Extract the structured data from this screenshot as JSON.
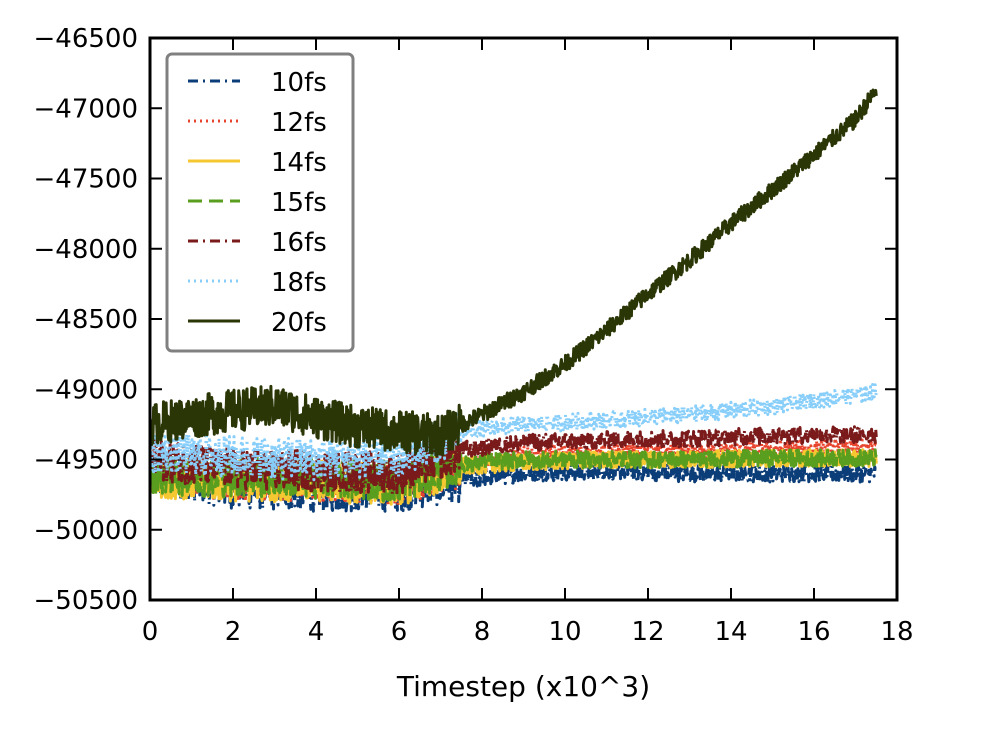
{
  "chart_data": {
    "type": "line",
    "title": "",
    "xlabel": "Timestep (x10^3)",
    "ylabel": "",
    "xlim": [
      0,
      18
    ],
    "ylim": [
      -50500,
      -46500
    ],
    "xticks": [
      0,
      2,
      4,
      6,
      8,
      10,
      12,
      14,
      16,
      18
    ],
    "yticks": [
      -46500,
      -47000,
      -47500,
      -48000,
      -48500,
      -49000,
      -49500,
      -50000,
      -50500
    ],
    "grid": false,
    "legend_position": "top-left",
    "series": [
      {
        "name": "10fs",
        "color": "#0b3d78",
        "dash": "dashdot",
        "x": [
          0,
          2,
          4,
          6,
          7.5,
          9,
          11,
          13,
          15,
          17.5
        ],
        "y": [
          -49600,
          -49700,
          -49720,
          -49720,
          -49650,
          -49600,
          -49580,
          -49600,
          -49600,
          -49600
        ]
      },
      {
        "name": "12fs",
        "color": "#e8432d",
        "dash": "dotted",
        "x": [
          0,
          2,
          4,
          6,
          7.5,
          9,
          11,
          13,
          15,
          17.5
        ],
        "y": [
          -49550,
          -49650,
          -49650,
          -49680,
          -49550,
          -49470,
          -49450,
          -49450,
          -49430,
          -49420
        ]
      },
      {
        "name": "14fs",
        "color": "#f5c731",
        "dash": "solid",
        "x": [
          0,
          2,
          4,
          6,
          7.5,
          9,
          11,
          13,
          15,
          17.5
        ],
        "y": [
          -49620,
          -49650,
          -49650,
          -49680,
          -49550,
          -49520,
          -49500,
          -49500,
          -49490,
          -49490
        ]
      },
      {
        "name": "15fs",
        "color": "#5a9e1f",
        "dash": "dashed",
        "x": [
          0,
          2,
          4,
          6,
          7.5,
          9,
          11,
          13,
          15,
          17.5
        ],
        "y": [
          -49600,
          -49620,
          -49630,
          -49650,
          -49530,
          -49500,
          -49500,
          -49500,
          -49490,
          -49490
        ]
      },
      {
        "name": "16fs",
        "color": "#7a1a1a",
        "dash": "dashdot",
        "x": [
          0,
          2,
          4,
          6,
          7.5,
          9,
          11,
          13,
          15,
          17.5
        ],
        "y": [
          -49500,
          -49560,
          -49580,
          -49600,
          -49430,
          -49380,
          -49360,
          -49350,
          -49330,
          -49320
        ]
      },
      {
        "name": "18fs",
        "color": "#87cefa",
        "dash": "dotted",
        "x": [
          0,
          2,
          4,
          6,
          7.5,
          9,
          11,
          13,
          15,
          17.5
        ],
        "y": [
          -49450,
          -49480,
          -49500,
          -49480,
          -49300,
          -49250,
          -49220,
          -49180,
          -49120,
          -49020
        ]
      },
      {
        "name": "20fs",
        "color": "#2a3606",
        "dash": "solid",
        "x": [
          0,
          1,
          2,
          3,
          4,
          5,
          6,
          7,
          7.5,
          8,
          9,
          10,
          11,
          12,
          13,
          14,
          15,
          16,
          17,
          17.5
        ],
        "y": [
          -49250,
          -49200,
          -49150,
          -49120,
          -49200,
          -49270,
          -49300,
          -49330,
          -49250,
          -49180,
          -49020,
          -48820,
          -48580,
          -48320,
          -48080,
          -47820,
          -47580,
          -47330,
          -47080,
          -46870
        ]
      }
    ]
  }
}
